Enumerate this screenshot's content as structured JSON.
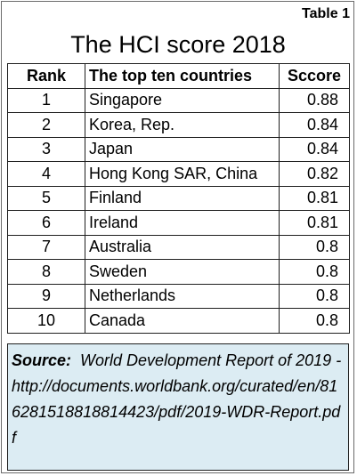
{
  "table_label": "Table 1",
  "title": "The HCI score 2018",
  "headers": {
    "rank": "Rank",
    "country": "The top ten countries",
    "score": "Sccore"
  },
  "rows": [
    {
      "rank": "1",
      "country": "Singapore",
      "score": "0.88"
    },
    {
      "rank": "2",
      "country": "Korea, Rep.",
      "score": "0.84"
    },
    {
      "rank": "3",
      "country": "Japan",
      "score": "0.84"
    },
    {
      "rank": "4",
      "country": "Hong Kong SAR, China",
      "score": "0.82"
    },
    {
      "rank": "5",
      "country": "Finland",
      "score": "0.81"
    },
    {
      "rank": "6",
      "country": "Ireland",
      "score": "0.81"
    },
    {
      "rank": "7",
      "country": "Australia",
      "score": "0.8"
    },
    {
      "rank": "8",
      "country": "Sweden",
      "score": "0.8"
    },
    {
      "rank": "9",
      "country": "Netherlands",
      "score": "0.8"
    },
    {
      "rank": "10",
      "country": "Canada",
      "score": "0.8"
    }
  ],
  "source": {
    "label": "Source:",
    "text": "World Development Report of 2019 - http://documents.worldbank.org/curated/en/816281518818814423/pdf/2019-WDR-Report.pdf"
  },
  "colors": {
    "source_background": "#dcecf3",
    "border": "#1f1f1f"
  }
}
